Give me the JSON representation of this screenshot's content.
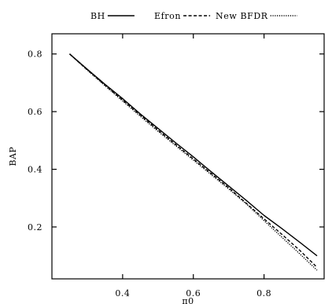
{
  "chart_data": {
    "type": "line",
    "xlabel": "π0",
    "ylabel": "BAP",
    "xlim": [
      0.2,
      0.97
    ],
    "ylim": [
      0.02,
      0.87
    ],
    "xticks": [
      0.4,
      0.6,
      0.8
    ],
    "yticks": [
      0.2,
      0.4,
      0.6,
      0.8
    ],
    "grid": false,
    "legend_position": "top",
    "series": [
      {
        "name": "BH",
        "line_style": "solid",
        "x": [
          0.25,
          0.3,
          0.35,
          0.4,
          0.45,
          0.5,
          0.55,
          0.6,
          0.65,
          0.7,
          0.75,
          0.8,
          0.85,
          0.9,
          0.95
        ],
        "y": [
          0.8,
          0.747,
          0.695,
          0.645,
          0.592,
          0.542,
          0.492,
          0.443,
          0.392,
          0.342,
          0.292,
          0.24,
          0.195,
          0.148,
          0.1
        ]
      },
      {
        "name": "Efron",
        "line_style": "dashed",
        "x": [
          0.25,
          0.3,
          0.35,
          0.4,
          0.45,
          0.5,
          0.55,
          0.6,
          0.65,
          0.7,
          0.75,
          0.8,
          0.85,
          0.9,
          0.95
        ],
        "y": [
          0.8,
          0.745,
          0.692,
          0.64,
          0.588,
          0.536,
          0.486,
          0.436,
          0.386,
          0.336,
          0.282,
          0.228,
          0.175,
          0.12,
          0.06
        ]
      },
      {
        "name": "New BFDR",
        "line_style": "dotted",
        "x": [
          0.25,
          0.3,
          0.35,
          0.4,
          0.45,
          0.5,
          0.55,
          0.6,
          0.65,
          0.7,
          0.75,
          0.8,
          0.85,
          0.9,
          0.95
        ],
        "y": [
          0.8,
          0.744,
          0.69,
          0.637,
          0.584,
          0.532,
          0.482,
          0.432,
          0.382,
          0.332,
          0.28,
          0.222,
          0.165,
          0.108,
          0.05
        ]
      }
    ]
  }
}
